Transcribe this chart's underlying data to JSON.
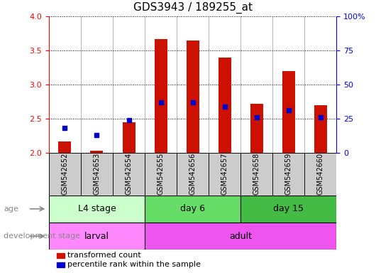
{
  "title": "GDS3943 / 189255_at",
  "samples": [
    "GSM542652",
    "GSM542653",
    "GSM542654",
    "GSM542655",
    "GSM542656",
    "GSM542657",
    "GSM542658",
    "GSM542659",
    "GSM542660"
  ],
  "transformed_count": [
    2.17,
    2.03,
    2.45,
    3.67,
    3.65,
    3.4,
    2.72,
    3.2,
    2.7
  ],
  "percentile_rank": [
    2.36,
    2.26,
    2.48,
    2.74,
    2.74,
    2.68,
    2.52,
    2.63,
    2.52
  ],
  "bar_bottom": 2.0,
  "ylim": [
    2.0,
    4.0
  ],
  "ylim_right": [
    0,
    100
  ],
  "yticks_left": [
    2.0,
    2.5,
    3.0,
    3.5,
    4.0
  ],
  "yticks_right": [
    0,
    25,
    50,
    75,
    100
  ],
  "ytick_right_labels": [
    "0",
    "25",
    "50",
    "75",
    "100%"
  ],
  "bar_color": "#cc1100",
  "percentile_color": "#0000cc",
  "age_groups": [
    {
      "label": "L4 stage",
      "start": 0,
      "end": 3,
      "color": "#ccffcc"
    },
    {
      "label": "day 6",
      "start": 3,
      "end": 6,
      "color": "#66dd66"
    },
    {
      "label": "day 15",
      "start": 6,
      "end": 9,
      "color": "#44bb44"
    }
  ],
  "dev_groups": [
    {
      "label": "larval",
      "start": 0,
      "end": 3,
      "color": "#ff88ff"
    },
    {
      "label": "adult",
      "start": 3,
      "end": 9,
      "color": "#ee55ee"
    }
  ],
  "age_label": "age",
  "dev_label": "development stage",
  "legend_bar_label": "transformed count",
  "legend_dot_label": "percentile rank within the sample",
  "sample_bg": "#cccccc",
  "plot_bg": "#ffffff",
  "bar_width": 0.4
}
